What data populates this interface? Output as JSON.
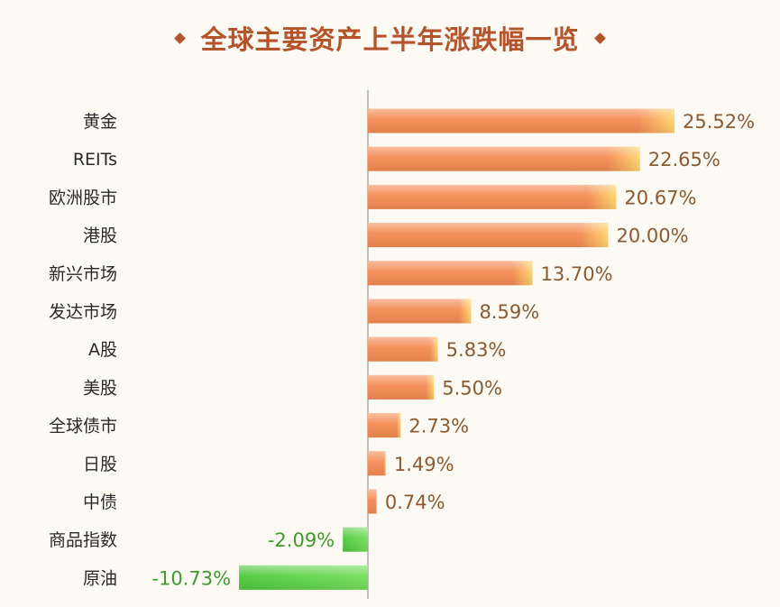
{
  "chart_data": {
    "type": "bar",
    "orientation": "horizontal",
    "title": "全球主要资产上半年涨跌幅一览",
    "categories": [
      "黄金",
      "REITs",
      "欧洲股市",
      "港股",
      "新兴市场",
      "发达市场",
      "A股",
      "美股",
      "全球债市",
      "日股",
      "中债",
      "商品指数",
      "原油"
    ],
    "values": [
      25.52,
      22.65,
      20.67,
      20.0,
      13.7,
      8.59,
      5.83,
      5.5,
      2.73,
      1.49,
      0.74,
      -2.09,
      -10.73
    ],
    "value_labels": [
      "25.52%",
      "22.65%",
      "20.67%",
      "20.00%",
      "13.70%",
      "8.59%",
      "5.83%",
      "5.50%",
      "2.73%",
      "1.49%",
      "0.74%",
      "-2.09%",
      "-10.73%"
    ],
    "grid": false,
    "colors": {
      "positive_bar": "#f48a52",
      "positive_bar_tip": "#ffd36b",
      "negative_bar": "#4dc83b",
      "positive_text": "#8a5a32",
      "negative_text": "#3f9a2f",
      "title": "#b5532b",
      "axis": "#a9a9a9"
    }
  }
}
